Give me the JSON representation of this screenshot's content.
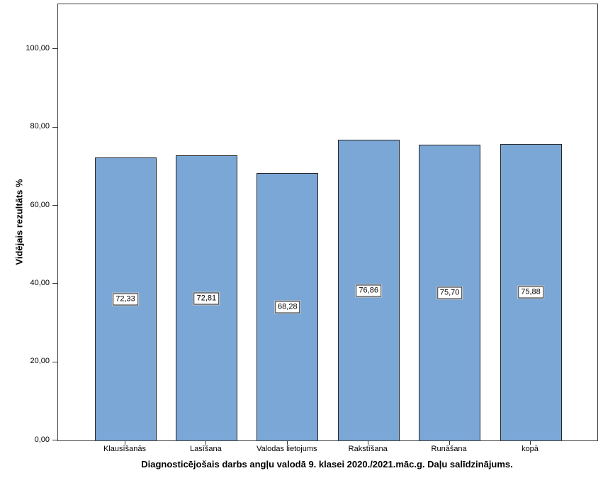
{
  "chart_data": {
    "type": "bar",
    "title": "Diagnosticējošais darbs angļu valodā 9. klasei 2020./2021.māc.g. Daļu salīdzinājums.",
    "ylabel": "Vidējais rezultāts %",
    "xlabel": "",
    "categories": [
      "Klausīšanās",
      "Lasīšana",
      "Valodas lietojums",
      "Rakstīšana",
      "Runāšana",
      "kopā"
    ],
    "values": [
      72.33,
      72.81,
      68.28,
      76.86,
      75.7,
      75.88
    ],
    "value_labels": [
      "72,33",
      "72,81",
      "68,28",
      "76,86",
      "75,70",
      "75,88"
    ],
    "y_ticks": [
      "0,00",
      "20,00",
      "40,00",
      "60,00",
      "80,00",
      "100,00"
    ],
    "y_tick_values": [
      0,
      20,
      40,
      60,
      80,
      100
    ],
    "ylim": [
      0,
      111.5
    ],
    "grid": false,
    "legend": "none",
    "bar_color": "#7AA7D6",
    "bar_border_color": "#262626",
    "frame_color": "#3d3d3d",
    "value_label_bg": "#ffffff",
    "value_label_border": "#2b2b2b"
  }
}
